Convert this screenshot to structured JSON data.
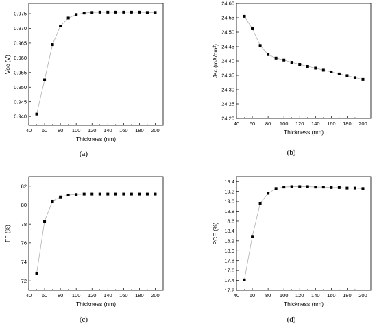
{
  "chart_data": [
    {
      "id": "a",
      "type": "line",
      "panel_label": "(a)",
      "xlabel": "Thickness (nm)",
      "ylabel": "Voc (V)",
      "xlim": [
        40,
        210
      ],
      "ylim": [
        0.937,
        0.9785
      ],
      "xticks": [
        40,
        60,
        80,
        100,
        120,
        140,
        160,
        180,
        200
      ],
      "yticks": [
        0.94,
        0.945,
        0.95,
        0.955,
        0.96,
        0.965,
        0.97,
        0.975
      ],
      "ytick_decimals": 3,
      "x": [
        50,
        60,
        70,
        80,
        90,
        100,
        110,
        120,
        130,
        140,
        150,
        160,
        170,
        180,
        190,
        200
      ],
      "y": [
        0.9408,
        0.9525,
        0.9645,
        0.9708,
        0.9735,
        0.9747,
        0.9752,
        0.9754,
        0.9755,
        0.9755,
        0.9755,
        0.9755,
        0.9755,
        0.9755,
        0.9754,
        0.9754
      ]
    },
    {
      "id": "b",
      "type": "line",
      "panel_label": "(b)",
      "xlabel": "Thickness (nm)",
      "ylabel": "Jsc (mA/cm²)",
      "xlim": [
        40,
        210
      ],
      "ylim": [
        24.2,
        24.6
      ],
      "xticks": [
        40,
        60,
        80,
        100,
        120,
        140,
        160,
        180,
        200
      ],
      "yticks": [
        24.2,
        24.25,
        24.3,
        24.35,
        24.4,
        24.45,
        24.5,
        24.55,
        24.6
      ],
      "ytick_decimals": 2,
      "x": [
        50,
        60,
        70,
        80,
        90,
        100,
        110,
        120,
        130,
        140,
        150,
        160,
        170,
        180,
        190,
        200
      ],
      "y": [
        24.555,
        24.512,
        24.454,
        24.422,
        24.41,
        24.403,
        24.395,
        24.388,
        24.381,
        24.375,
        24.368,
        24.362,
        24.355,
        24.349,
        24.342,
        24.336
      ]
    },
    {
      "id": "c",
      "type": "line",
      "panel_label": "(c)",
      "xlabel": "Thickness (nm)",
      "ylabel": "FF (%)",
      "xlim": [
        40,
        210
      ],
      "ylim": [
        71.0,
        83.0
      ],
      "xticks": [
        40,
        60,
        80,
        100,
        120,
        140,
        160,
        180,
        200
      ],
      "yticks": [
        72,
        74,
        76,
        78,
        80,
        82
      ],
      "ytick_decimals": 0,
      "x": [
        50,
        60,
        70,
        80,
        90,
        100,
        110,
        120,
        130,
        140,
        150,
        160,
        170,
        180,
        190,
        200
      ],
      "y": [
        72.8,
        78.3,
        80.4,
        80.85,
        81.05,
        81.1,
        81.15,
        81.15,
        81.15,
        81.15,
        81.15,
        81.15,
        81.15,
        81.15,
        81.15,
        81.15
      ]
    },
    {
      "id": "d",
      "type": "line",
      "panel_label": "(d)",
      "xlabel": "Thickness (nm)",
      "ylabel": "PCE (%)",
      "xlim": [
        40,
        210
      ],
      "ylim": [
        17.2,
        19.5
      ],
      "xticks": [
        40,
        60,
        80,
        100,
        120,
        140,
        160,
        180,
        200
      ],
      "yticks": [
        17.2,
        17.4,
        17.6,
        17.8,
        18.0,
        18.2,
        18.4,
        18.6,
        18.8,
        19.0,
        19.2,
        19.4
      ],
      "ytick_decimals": 1,
      "x": [
        50,
        60,
        70,
        80,
        90,
        100,
        110,
        120,
        130,
        140,
        150,
        160,
        170,
        180,
        190,
        200
      ],
      "y": [
        17.41,
        18.29,
        18.96,
        19.16,
        19.26,
        19.29,
        19.3,
        19.3,
        19.3,
        19.29,
        19.29,
        19.28,
        19.28,
        19.27,
        19.27,
        19.26
      ]
    }
  ]
}
